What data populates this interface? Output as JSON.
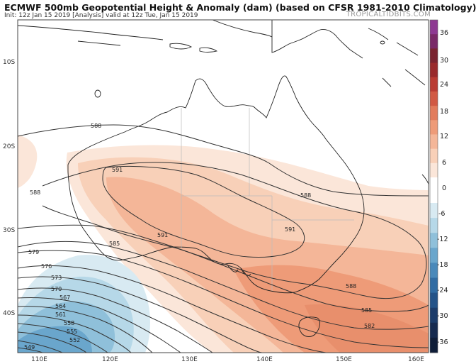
{
  "header": {
    "title": "ECMWF 500mb Geopotential Height & Anomaly (dam) (based on CFSR 1981-2010 Climatology)",
    "subtitle": "Init: 12z Jan 15 2019   [Analysis]   valid at 12z Tue, Jan 15 2019",
    "brand": "TROPICALTIDBITS.COM"
  },
  "axes": {
    "lat_labels": [
      "10S",
      "20S",
      "30S",
      "40S"
    ],
    "lon_labels": [
      "110E",
      "120E",
      "130E",
      "140E",
      "150E",
      "160E"
    ]
  },
  "colorbar": {
    "labels": [
      "36",
      "30",
      "24",
      "18",
      "12",
      "6",
      "0",
      "-6",
      "-12",
      "-18",
      "-24",
      "-30",
      "-36"
    ],
    "positive_colors": [
      "#fbe6d9",
      "#f8d0b8",
      "#f4b698",
      "#ee9b78",
      "#e27c5c",
      "#d15a44",
      "#ba3c33",
      "#992a2c",
      "#7a2430",
      "#7a2a68",
      "#8e3a92"
    ],
    "negative_colors": [
      "#d8eaf2",
      "#b6d8e8",
      "#8fc0da",
      "#6aa6cc",
      "#4a89ba",
      "#316ca3",
      "#245388",
      "#1c3c6a",
      "#162a4f",
      "#0f1d38"
    ]
  },
  "contour_labels": {
    "north": [
      "588",
      "591",
      "591",
      "588",
      "591",
      "588"
    ],
    "west_stack": [
      "585",
      "579",
      "576",
      "573",
      "570",
      "567",
      "564",
      "561",
      "558",
      "555",
      "552",
      "549"
    ],
    "south_east": [
      "588",
      "585",
      "582"
    ]
  }
}
